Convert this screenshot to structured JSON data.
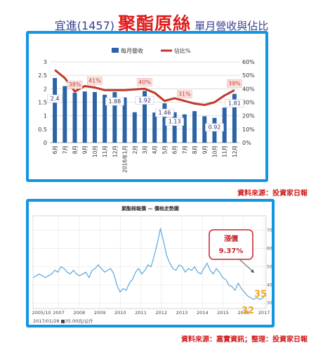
{
  "title": {
    "company": "宜進(1457)",
    "product": "聚酯原絲",
    "subtitle": "單月營收與佔比"
  },
  "colors": {
    "bar": "#2b63a6",
    "line": "#c0392b",
    "price_line": "#5aa7dc",
    "panel_border": "#1296e0",
    "source_text": "#d11a1a",
    "callout": "#c4242a",
    "latest_price": "#f5a623"
  },
  "sources": {
    "top": "資料來源：投資家日報",
    "bottom": "資料來源：嘉實資訊；整理：投資家日報"
  },
  "chart_data": [
    {
      "type": "bar",
      "legend": [
        "每月營收",
        "佔比%"
      ],
      "legend_placement": "top-center",
      "categories": [
        "6月",
        "7月",
        "8月",
        "9月",
        "10月",
        "11月",
        "12月",
        "2016年1月",
        "2月",
        "3月",
        "4月",
        "5月",
        "6月",
        "7月",
        "8月",
        "9月",
        "10月",
        "11月",
        "12月"
      ],
      "series": [
        {
          "name": "每月營收",
          "type": "bar",
          "axis": "left",
          "values": [
            2.4,
            2.1,
            1.85,
            1.9,
            1.88,
            1.78,
            1.88,
            1.68,
            1.13,
            1.92,
            1.12,
            1.46,
            1.13,
            1.05,
            1.17,
            0.98,
            0.92,
            1.3,
            1.81
          ]
        },
        {
          "name": "佔比%",
          "type": "line",
          "axis": "right",
          "values": [
            54,
            48,
            38,
            42,
            41,
            39,
            39,
            39,
            39.5,
            40,
            37,
            31,
            33,
            31,
            29,
            28,
            30,
            35,
            39
          ]
        }
      ],
      "bar_labels": [
        {
          "index": 0,
          "text": "2.4"
        },
        {
          "index": 6,
          "text": "1.88"
        },
        {
          "index": 9,
          "text": "1.92"
        },
        {
          "index": 11,
          "text": "1.46"
        },
        {
          "index": 12,
          "text": "1.13"
        },
        {
          "index": 16,
          "text": "0.92"
        },
        {
          "index": 18,
          "text": "1.81"
        }
      ],
      "line_labels": [
        {
          "index": 2,
          "text": "38%"
        },
        {
          "index": 4,
          "text": "41%"
        },
        {
          "index": 9,
          "text": "40%"
        },
        {
          "index": 13,
          "text": "31%"
        },
        {
          "index": 18,
          "text": "39%"
        }
      ],
      "y_left": {
        "min": 0,
        "max": 3,
        "ticks": [
          "0",
          "0.5",
          "1",
          "1.5",
          "2",
          "2.5",
          "3"
        ]
      },
      "y_right": {
        "min": 0,
        "max": 60,
        "ticks": [
          "0%",
          "10%",
          "20%",
          "30%",
          "40%",
          "50%",
          "60%"
        ]
      },
      "grid": true
    },
    {
      "type": "line",
      "title": "聚酯棉報價 — 價格走勢圖",
      "x_ticks": [
        "2005/10",
        "2007",
        "2008",
        "2009",
        "2010",
        "2011",
        "2012",
        "2013",
        "2014",
        "2015",
        "2016",
        "2017"
      ],
      "y_ticks": [
        "30",
        "40",
        "50",
        "60",
        "70"
      ],
      "y_range": [
        27,
        78
      ],
      "footer": "2017/01/28 ■35.00元/公斤",
      "callout": {
        "label": "漲價",
        "value": "9.37%"
      },
      "price_labels": [
        "35",
        "32"
      ],
      "series": [
        {
          "name": "聚酯棉報價",
          "x_start": 2005.75,
          "x_end": 2017.1,
          "values": [
            44,
            45,
            46,
            45,
            44,
            45,
            46,
            48,
            47,
            50,
            49,
            47,
            46,
            48,
            46,
            45,
            46,
            47,
            44,
            48,
            49,
            51,
            49,
            47,
            48,
            49,
            46,
            40,
            36,
            38,
            37,
            41,
            43,
            47,
            49,
            46,
            48,
            51,
            50,
            56,
            63,
            71,
            64,
            56,
            52,
            49,
            48,
            51,
            50,
            47,
            49,
            48,
            50,
            47,
            46,
            49,
            52,
            48,
            46,
            49,
            47,
            44,
            43,
            40,
            39,
            37,
            41,
            38,
            36,
            34,
            33,
            32,
            33,
            32,
            33,
            35
          ]
        }
      ]
    }
  ]
}
